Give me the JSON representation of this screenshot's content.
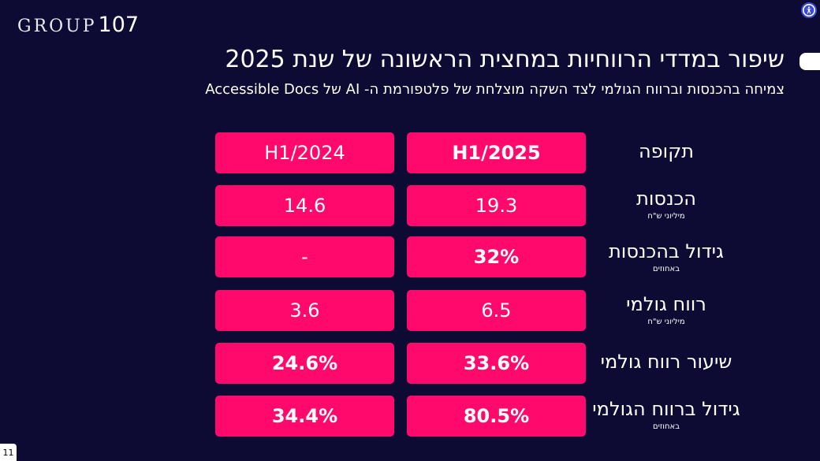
{
  "logo": {
    "word": "GROUP",
    "number": "107"
  },
  "title": "שיפור במדדי הרווחיות במחצית הראשונה של שנת 2025",
  "subtitle": "צמיחה בהכנסות וברווח הגולמי לצד השקה מוצלחת של פלטפורמת ה- AI של Accessible Docs",
  "table": {
    "rows": [
      {
        "label": "תקופה",
        "sublabel": "",
        "h1_2025": "H1/2025",
        "h1_2024": "H1/2024"
      },
      {
        "label": "הכנסות",
        "sublabel": "מיליוני ש\"ח",
        "h1_2025": "19.3",
        "h1_2024": "14.6"
      },
      {
        "label": "גידול בהכנסות",
        "sublabel": "באחוזים",
        "h1_2025": "32%",
        "h1_2024": "-"
      },
      {
        "label": "רווח גולמי",
        "sublabel": "מיליוני ש\"ח",
        "h1_2025": "6.5",
        "h1_2024": "3.6"
      },
      {
        "label": "שיעור רווח גולמי",
        "sublabel": "",
        "h1_2025": "33.6%",
        "h1_2024": "24.6%"
      },
      {
        "label": "גידול ברווח הגולמי",
        "sublabel": "באחוזים",
        "h1_2025": "80.5%",
        "h1_2024": "34.4%"
      }
    ]
  },
  "page_number": "11",
  "icons": {
    "accessibility": "accessibility-icon"
  },
  "colors": {
    "background": "#0d0b33",
    "accent": "#ff0a6c"
  }
}
